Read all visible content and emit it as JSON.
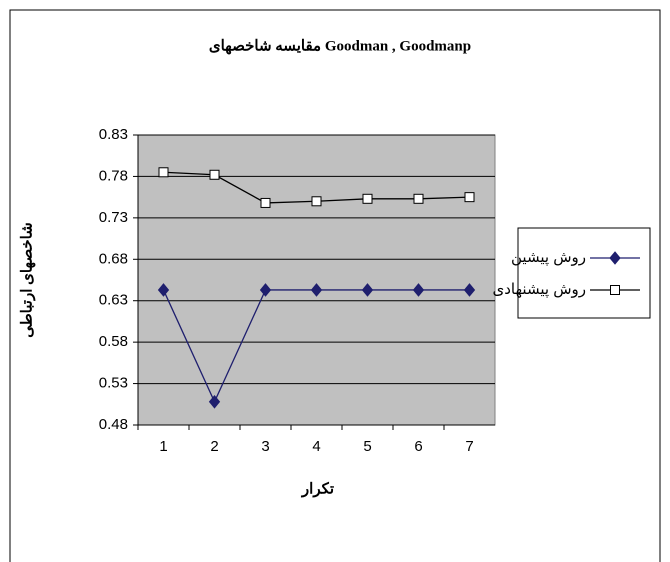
{
  "chart_data": {
    "type": "line",
    "title": "مقایسه شاخصهای Goodman , Goodmanp",
    "y_label": "شاخصهای ارتباطی",
    "x_label": "تکرار",
    "categories": [
      "1",
      "2",
      "3",
      "4",
      "5",
      "6",
      "7"
    ],
    "series": [
      {
        "name": "روش پیشین",
        "color": "#1f1f6e",
        "marker": "diamond",
        "values": [
          0.643,
          0.508,
          0.643,
          0.643,
          0.643,
          0.643,
          0.643
        ]
      },
      {
        "name": "روش پیشنهادی",
        "color": "#000000",
        "marker": "square",
        "values": [
          0.785,
          0.782,
          0.748,
          0.75,
          0.753,
          0.753,
          0.755
        ]
      }
    ],
    "ylim": [
      0.48,
      0.83
    ],
    "yticks": [
      0.48,
      0.53,
      0.58,
      0.63,
      0.68,
      0.73,
      0.78,
      0.83
    ],
    "grid": true,
    "legend": "right"
  }
}
